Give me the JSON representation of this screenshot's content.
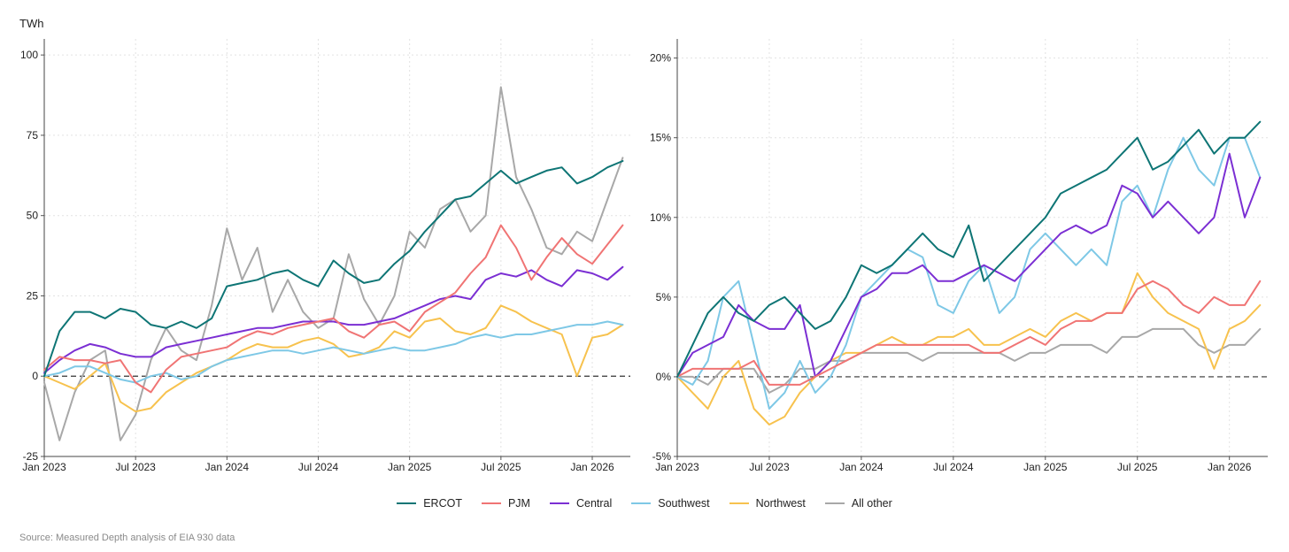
{
  "source": "Source: Measured Depth analysis of EIA 930 data",
  "series_meta": [
    {
      "name": "ERCOT",
      "color": "#0e7575"
    },
    {
      "name": "PJM",
      "color": "#f07474"
    },
    {
      "name": "Central",
      "color": "#7b2fd3"
    },
    {
      "name": "Southwest",
      "color": "#7ec8e6"
    },
    {
      "name": "Northwest",
      "color": "#f7c24e"
    },
    {
      "name": "All other",
      "color": "#a8a8a8"
    }
  ],
  "chart_data": [
    {
      "type": "line",
      "ylabel": "TWh",
      "ylim": [
        -25,
        105
      ],
      "yticks": [
        -25,
        0,
        25,
        50,
        75,
        100
      ],
      "yticklabels": [
        "-25",
        "0",
        "25",
        "50",
        "75",
        "100"
      ],
      "xlim": [
        0,
        38.5
      ],
      "xticks": [
        0,
        6,
        12,
        18,
        24,
        30,
        36
      ],
      "xticklabels": [
        "Jan 2023",
        "Jul 2023",
        "Jan 2024",
        "Jul 2024",
        "Jan 2025",
        "Jul 2025",
        "Jan 2026"
      ],
      "zero_line": 0,
      "x_unit": "months since Jan 2023",
      "series": [
        {
          "name": "ERCOT",
          "x": [
            0,
            1,
            2,
            3,
            4,
            5,
            6,
            7,
            8,
            9,
            10,
            11,
            12,
            13,
            14,
            15,
            16,
            17,
            18,
            19,
            20,
            21,
            22,
            23,
            24,
            25,
            26,
            27,
            28,
            29,
            30,
            31,
            32,
            33,
            34,
            35,
            36,
            37,
            38
          ],
          "values": [
            0,
            14,
            20,
            20,
            18,
            21,
            20,
            16,
            15,
            17,
            15,
            18,
            28,
            29,
            30,
            32,
            33,
            30,
            28,
            36,
            32,
            29,
            30,
            35,
            39,
            45,
            50,
            55,
            56,
            60,
            64,
            60,
            62,
            64,
            65,
            60,
            62,
            65,
            67
          ]
        },
        {
          "name": "PJM",
          "x": [
            0,
            1,
            2,
            3,
            4,
            5,
            6,
            7,
            8,
            9,
            10,
            11,
            12,
            13,
            14,
            15,
            16,
            17,
            18,
            19,
            20,
            21,
            22,
            23,
            24,
            25,
            26,
            27,
            28,
            29,
            30,
            31,
            32,
            33,
            34,
            35,
            36,
            37,
            38
          ],
          "values": [
            2,
            6,
            5,
            5,
            4,
            5,
            -2,
            -5,
            2,
            6,
            7,
            8,
            9,
            12,
            14,
            13,
            15,
            16,
            17,
            18,
            14,
            12,
            16,
            17,
            14,
            20,
            23,
            26,
            32,
            37,
            47,
            40,
            30,
            37,
            43,
            38,
            35,
            41,
            47
          ]
        },
        {
          "name": "Central",
          "x": [
            0,
            1,
            2,
            3,
            4,
            5,
            6,
            7,
            8,
            9,
            10,
            11,
            12,
            13,
            14,
            15,
            16,
            17,
            18,
            19,
            20,
            21,
            22,
            23,
            24,
            25,
            26,
            27,
            28,
            29,
            30,
            31,
            32,
            33,
            34,
            35,
            36,
            37,
            38
          ],
          "values": [
            1,
            5,
            8,
            10,
            9,
            7,
            6,
            6,
            9,
            10,
            11,
            12,
            13,
            14,
            15,
            15,
            16,
            17,
            17,
            17,
            16,
            16,
            17,
            18,
            20,
            22,
            24,
            25,
            24,
            30,
            32,
            31,
            33,
            30,
            28,
            33,
            32,
            30,
            34
          ]
        },
        {
          "name": "Southwest",
          "x": [
            0,
            1,
            2,
            3,
            4,
            5,
            6,
            7,
            8,
            9,
            10,
            11,
            12,
            13,
            14,
            15,
            16,
            17,
            18,
            19,
            20,
            21,
            22,
            23,
            24,
            25,
            26,
            27,
            28,
            29,
            30,
            31,
            32,
            33,
            34,
            35,
            36,
            37,
            38
          ],
          "values": [
            0,
            1,
            3,
            3,
            1,
            -1,
            -2,
            0,
            1,
            -1,
            0,
            3,
            5,
            6,
            7,
            8,
            8,
            7,
            8,
            9,
            8,
            7,
            8,
            9,
            8,
            8,
            9,
            10,
            12,
            13,
            12,
            13,
            13,
            14,
            15,
            16,
            16,
            17,
            16
          ]
        },
        {
          "name": "Northwest",
          "x": [
            0,
            1,
            2,
            3,
            4,
            5,
            6,
            7,
            8,
            9,
            10,
            11,
            12,
            13,
            14,
            15,
            16,
            17,
            18,
            19,
            20,
            21,
            22,
            23,
            24,
            25,
            26,
            27,
            28,
            29,
            30,
            31,
            32,
            33,
            34,
            35,
            36,
            37,
            38
          ],
          "values": [
            0,
            -2,
            -4,
            0,
            4,
            -8,
            -11,
            -10,
            -5,
            -2,
            1,
            3,
            5,
            8,
            10,
            9,
            9,
            11,
            12,
            10,
            6,
            7,
            9,
            14,
            12,
            17,
            18,
            14,
            13,
            15,
            22,
            20,
            17,
            15,
            13,
            0,
            12,
            13,
            16
          ]
        },
        {
          "name": "All other",
          "x": [
            0,
            1,
            2,
            3,
            4,
            5,
            6,
            7,
            8,
            9,
            10,
            11,
            12,
            13,
            14,
            15,
            16,
            17,
            18,
            19,
            20,
            21,
            22,
            23,
            24,
            25,
            26,
            27,
            28,
            29,
            30,
            31,
            32,
            33,
            34,
            35,
            36,
            37,
            38
          ],
          "values": [
            -2,
            -20,
            -5,
            5,
            8,
            -20,
            -12,
            5,
            15,
            8,
            5,
            22,
            46,
            30,
            40,
            20,
            30,
            20,
            15,
            18,
            38,
            24,
            16,
            25,
            45,
            40,
            52,
            55,
            45,
            50,
            90,
            62,
            52,
            40,
            38,
            45,
            42,
            55,
            68
          ]
        }
      ]
    },
    {
      "type": "line",
      "ylabel": "",
      "ylim": [
        -5,
        21.2
      ],
      "yticks": [
        -5,
        0,
        5,
        10,
        15,
        20
      ],
      "yticklabels": [
        "-5%",
        "0%",
        "5%",
        "10%",
        "15%",
        "20%"
      ],
      "xlim": [
        0,
        38.5
      ],
      "xticks": [
        0,
        6,
        12,
        18,
        24,
        30,
        36
      ],
      "xticklabels": [
        "Jan 2023",
        "Jul 2023",
        "Jan 2024",
        "Jul 2024",
        "Jan 2025",
        "Jul 2025",
        "Jan 2026"
      ],
      "zero_line": 0,
      "x_unit": "months since Jan 2023",
      "series": [
        {
          "name": "ERCOT",
          "x": [
            0,
            1,
            2,
            3,
            4,
            5,
            6,
            7,
            8,
            9,
            10,
            11,
            12,
            13,
            14,
            15,
            16,
            17,
            18,
            19,
            20,
            21,
            22,
            23,
            24,
            25,
            26,
            27,
            28,
            29,
            30,
            31,
            32,
            33,
            34,
            35,
            36,
            37,
            38
          ],
          "values": [
            0,
            2,
            4,
            5,
            4,
            3.5,
            4.5,
            5,
            4,
            3,
            3.5,
            5,
            7,
            6.5,
            7,
            8,
            9,
            8,
            7.5,
            9.5,
            6,
            7,
            8,
            9,
            10,
            11.5,
            12,
            12.5,
            13,
            14,
            15,
            13,
            13.5,
            14.5,
            15.5,
            14,
            15,
            15,
            16
          ]
        },
        {
          "name": "PJM",
          "x": [
            0,
            1,
            2,
            3,
            4,
            5,
            6,
            7,
            8,
            9,
            10,
            11,
            12,
            13,
            14,
            15,
            16,
            17,
            18,
            19,
            20,
            21,
            22,
            23,
            24,
            25,
            26,
            27,
            28,
            29,
            30,
            31,
            32,
            33,
            34,
            35,
            36,
            37,
            38
          ],
          "values": [
            0,
            0.5,
            0.5,
            0.5,
            0.5,
            1,
            -0.5,
            -0.5,
            -0.5,
            0,
            0.5,
            1,
            1.5,
            2,
            2,
            2,
            2,
            2,
            2,
            2,
            1.5,
            1.5,
            2,
            2.5,
            2,
            3,
            3.5,
            3.5,
            4,
            4,
            5.5,
            6,
            5.5,
            4.5,
            4,
            5,
            4.5,
            4.5,
            6
          ]
        },
        {
          "name": "Central",
          "x": [
            0,
            1,
            2,
            3,
            4,
            5,
            6,
            7,
            8,
            9,
            10,
            11,
            12,
            13,
            14,
            15,
            16,
            17,
            18,
            19,
            20,
            21,
            22,
            23,
            24,
            25,
            26,
            27,
            28,
            29,
            30,
            31,
            32,
            33,
            34,
            35,
            36,
            37,
            38
          ],
          "values": [
            0,
            1.5,
            2,
            2.5,
            4.5,
            3.5,
            3,
            3,
            4.5,
            0,
            1,
            3,
            5,
            5.5,
            6.5,
            6.5,
            7,
            6,
            6,
            6.5,
            7,
            6.5,
            6,
            7,
            8,
            9,
            9.5,
            9,
            9.5,
            12,
            11.5,
            10,
            11,
            10,
            9,
            10,
            14,
            10,
            12.5
          ]
        },
        {
          "name": "Southwest",
          "x": [
            0,
            1,
            2,
            3,
            4,
            5,
            6,
            7,
            8,
            9,
            10,
            11,
            12,
            13,
            14,
            15,
            16,
            17,
            18,
            19,
            20,
            21,
            22,
            23,
            24,
            25,
            26,
            27,
            28,
            29,
            30,
            31,
            32,
            33,
            34,
            35,
            36,
            37,
            38
          ],
          "values": [
            0,
            -0.5,
            1,
            5,
            6,
            2,
            -2,
            -1,
            1,
            -1,
            0,
            2,
            5,
            6,
            7,
            8,
            7.5,
            4.5,
            4,
            6,
            7,
            4,
            5,
            8,
            9,
            8,
            7,
            8,
            7,
            11,
            12,
            10,
            13,
            15,
            13,
            12,
            15,
            15,
            12.5
          ]
        },
        {
          "name": "Northwest",
          "x": [
            0,
            1,
            2,
            3,
            4,
            5,
            6,
            7,
            8,
            9,
            10,
            11,
            12,
            13,
            14,
            15,
            16,
            17,
            18,
            19,
            20,
            21,
            22,
            23,
            24,
            25,
            26,
            27,
            28,
            29,
            30,
            31,
            32,
            33,
            34,
            35,
            36,
            37,
            38
          ],
          "values": [
            0,
            -1,
            -2,
            0,
            1,
            -2,
            -3,
            -2.5,
            -1,
            0,
            1,
            1.5,
            1.5,
            2,
            2.5,
            2,
            2,
            2.5,
            2.5,
            3,
            2,
            2,
            2.5,
            3,
            2.5,
            3.5,
            4,
            3.5,
            4,
            4,
            6.5,
            5,
            4,
            3.5,
            3,
            0.5,
            3,
            3.5,
            4.5
          ]
        },
        {
          "name": "All other",
          "x": [
            0,
            1,
            2,
            3,
            4,
            5,
            6,
            7,
            8,
            9,
            10,
            11,
            12,
            13,
            14,
            15,
            16,
            17,
            18,
            19,
            20,
            21,
            22,
            23,
            24,
            25,
            26,
            27,
            28,
            29,
            30,
            31,
            32,
            33,
            34,
            35,
            36,
            37,
            38
          ],
          "values": [
            0,
            0,
            -0.5,
            0.5,
            0.5,
            0.5,
            -1,
            -0.5,
            0.5,
            0.5,
            1,
            1,
            1.5,
            1.5,
            1.5,
            1.5,
            1,
            1.5,
            1.5,
            1.5,
            1.5,
            1.5,
            1,
            1.5,
            1.5,
            2,
            2,
            2,
            1.5,
            2.5,
            2.5,
            3,
            3,
            3,
            2,
            1.5,
            2,
            2,
            3
          ]
        }
      ]
    }
  ]
}
